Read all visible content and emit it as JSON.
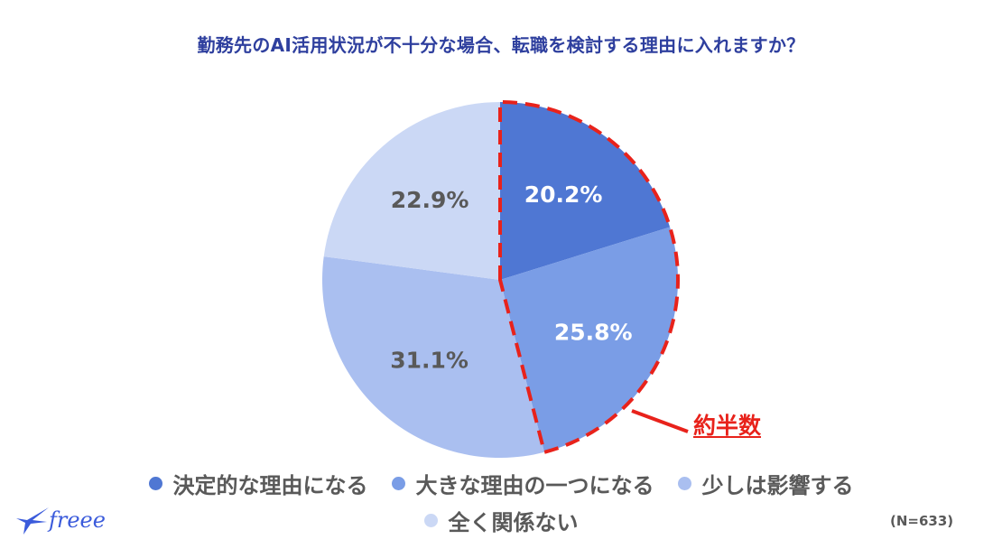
{
  "header": {
    "title": "勤務先のAI活用状況が不十分な場合、転職を検討する理由に入れますか？"
  },
  "chart_data": {
    "type": "pie",
    "title": "勤務先のAI活用状況が不十分な場合、転職を検討する理由に入れますか？",
    "categories": [
      "決定的な理由になる",
      "大きな理由の一つになる",
      "少しは影響する",
      "全く関係ない"
    ],
    "values": [
      20.2,
      25.8,
      31.1,
      22.9
    ],
    "labels": [
      "20.2%",
      "25.8%",
      "31.1%",
      "22.9%"
    ],
    "colors": [
      "#4f77d3",
      "#7a9de6",
      "#aabff0",
      "#cbd8f5"
    ],
    "label_colors": [
      "#ffffff",
      "#ffffff",
      "#595959",
      "#595959"
    ],
    "start_angle_deg": 0,
    "direction": "clockwise",
    "legend_position": "bottom",
    "highlight": {
      "slices": [
        0,
        1
      ],
      "style": "red dashed outline",
      "color": "#e8221b",
      "annotation": "約半数"
    },
    "sample_size": "(N=633)"
  },
  "annotation": {
    "label": "約半数",
    "color": "#e8221b"
  },
  "legend": {
    "items": [
      {
        "label": "決定的な理由になる",
        "color": "#4f77d3"
      },
      {
        "label": "大きな理由の一つになる",
        "color": "#7a9de6"
      },
      {
        "label": "少しは影響する",
        "color": "#aabff0"
      },
      {
        "label": "全く関係ない",
        "color": "#cbd8f5"
      }
    ]
  },
  "footer": {
    "note": "(N=633)",
    "logo_text": "freee"
  }
}
